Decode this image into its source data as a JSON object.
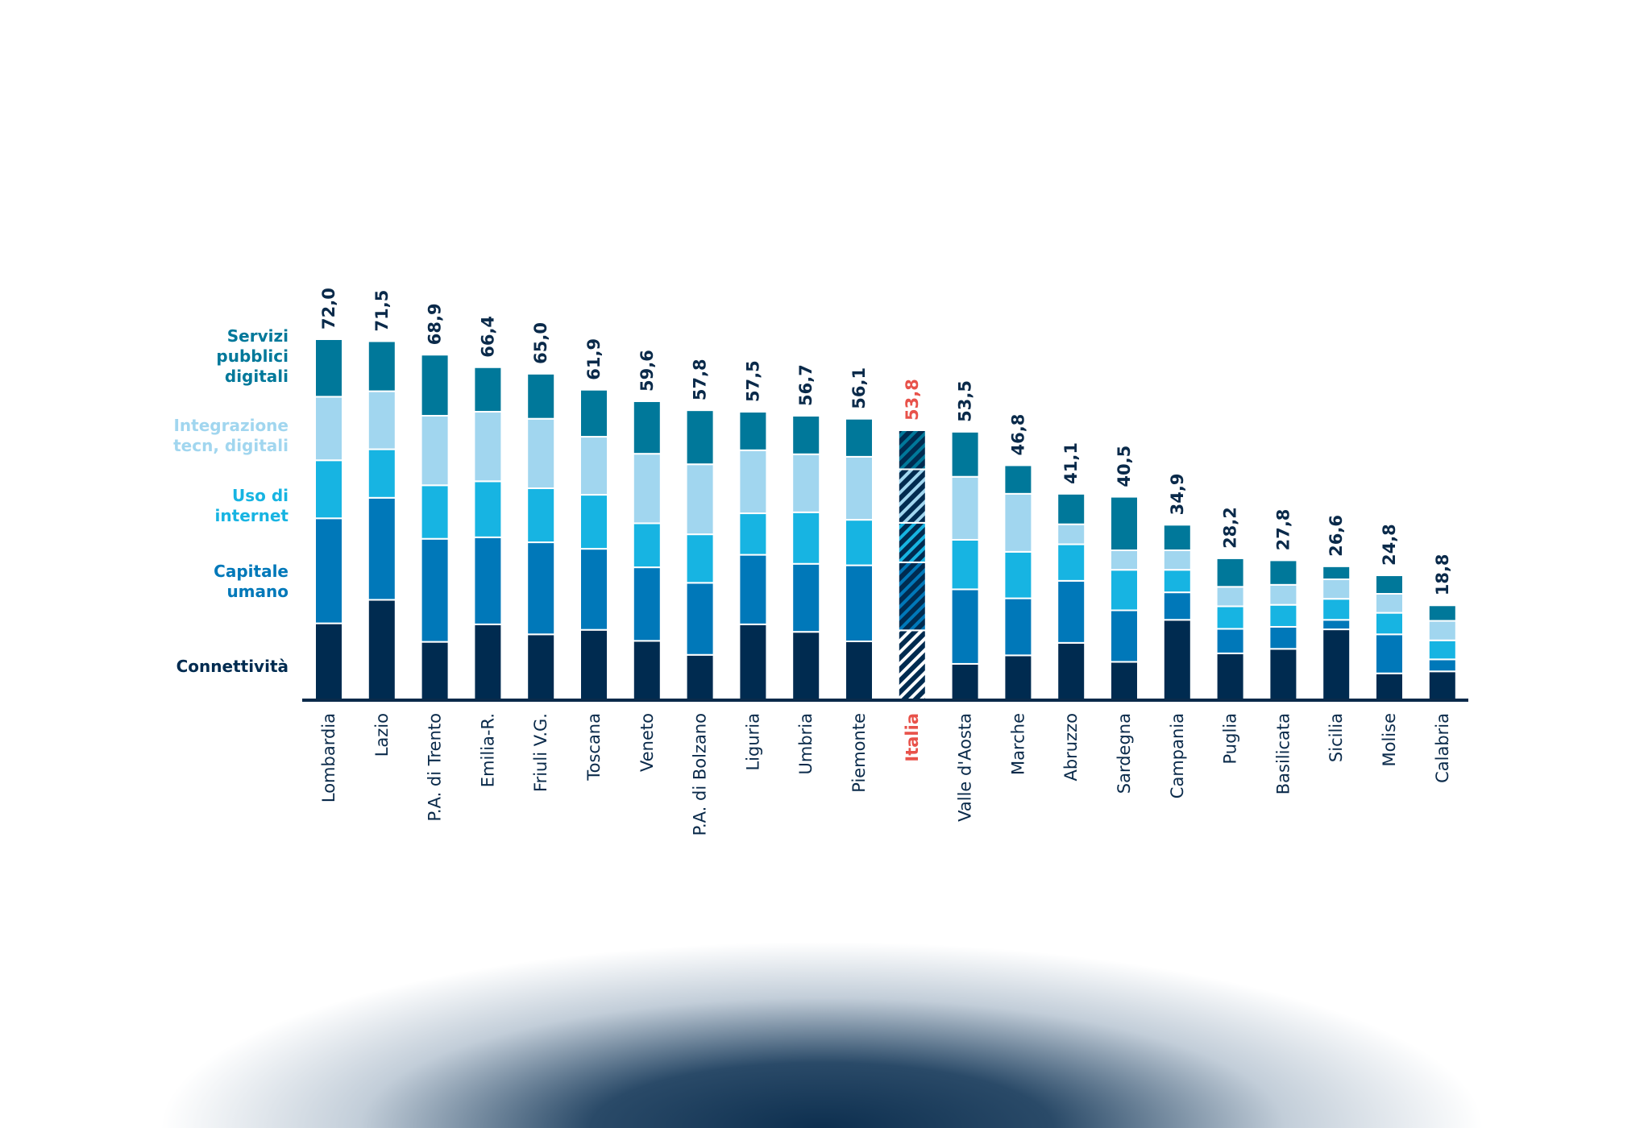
{
  "chart_data": {
    "type": "stacked-bar",
    "categories": [
      "Lombardia",
      "Lazio",
      "P.A. di Trento",
      "Emilia-R.",
      "Friuli V.G.",
      "Toscana",
      "Veneto",
      "P.A. di Bolzano",
      "Liguria",
      "Umbria",
      "Piemonte",
      "Italia",
      "Valle d'Aosta",
      "Marche",
      "Abruzzo",
      "Sardegna",
      "Campania",
      "Puglia",
      "Basilicata",
      "Sicilia",
      "Molise",
      "Calabria"
    ],
    "totals": [
      "72,0",
      "71,5",
      "68,9",
      "66,4",
      "65,0",
      "61,9",
      "59,6",
      "57,8",
      "57,5",
      "56,7",
      "56,1",
      "53,8",
      "53,5",
      "46,8",
      "41,1",
      "40,5",
      "34,9",
      "28,2",
      "27,8",
      "26,6",
      "24,8",
      "18,8"
    ],
    "highlight": "Italia",
    "highlight_color": "#E8524A",
    "ylim": [
      0,
      72
    ],
    "grid": false,
    "legend_position": "left",
    "series": [
      {
        "name": "Connettività",
        "color": "#002B50",
        "values": [
          15.2,
          19.9,
          11.5,
          15.0,
          13.0,
          13.9,
          11.7,
          8.9,
          15.0,
          13.5,
          11.6,
          13.8,
          7.1,
          8.8,
          11.3,
          7.5,
          15.9,
          9.2,
          10.1,
          14.0,
          5.2,
          5.6
        ]
      },
      {
        "name": "Capitale\numano",
        "color": "#0078B9",
        "values": [
          21.0,
          20.4,
          20.6,
          17.4,
          18.4,
          16.2,
          14.7,
          14.4,
          13.9,
          13.6,
          15.2,
          13.6,
          14.9,
          11.4,
          12.4,
          10.3,
          5.5,
          4.9,
          4.4,
          1.9,
          7.8,
          2.4
        ]
      },
      {
        "name": "Uso di\ninternet",
        "color": "#17B4E2",
        "values": [
          11.6,
          9.7,
          10.7,
          11.2,
          10.8,
          10.8,
          8.8,
          9.7,
          8.3,
          10.3,
          9.1,
          7.9,
          9.9,
          9.3,
          7.3,
          8.1,
          4.5,
          4.5,
          4.4,
          4.2,
          4.3,
          3.8
        ]
      },
      {
        "name": "Integrazione\ntecn, digitali",
        "color": "#A1D6EF",
        "values": [
          12.7,
          11.6,
          13.9,
          13.9,
          13.9,
          11.6,
          13.9,
          14.0,
          12.6,
          11.6,
          12.6,
          10.7,
          12.6,
          11.6,
          4.0,
          3.9,
          3.9,
          3.9,
          4.0,
          3.9,
          3.8,
          3.9
        ]
      },
      {
        "name": "Servizi\npubblici\ndigitali",
        "color": "#00789A",
        "values": [
          11.5,
          10.0,
          12.2,
          8.9,
          9.0,
          9.4,
          10.5,
          10.8,
          7.7,
          7.7,
          7.6,
          7.8,
          9.0,
          5.7,
          6.1,
          10.7,
          5.1,
          5.7,
          4.9,
          2.6,
          3.7,
          3.1
        ]
      }
    ]
  }
}
